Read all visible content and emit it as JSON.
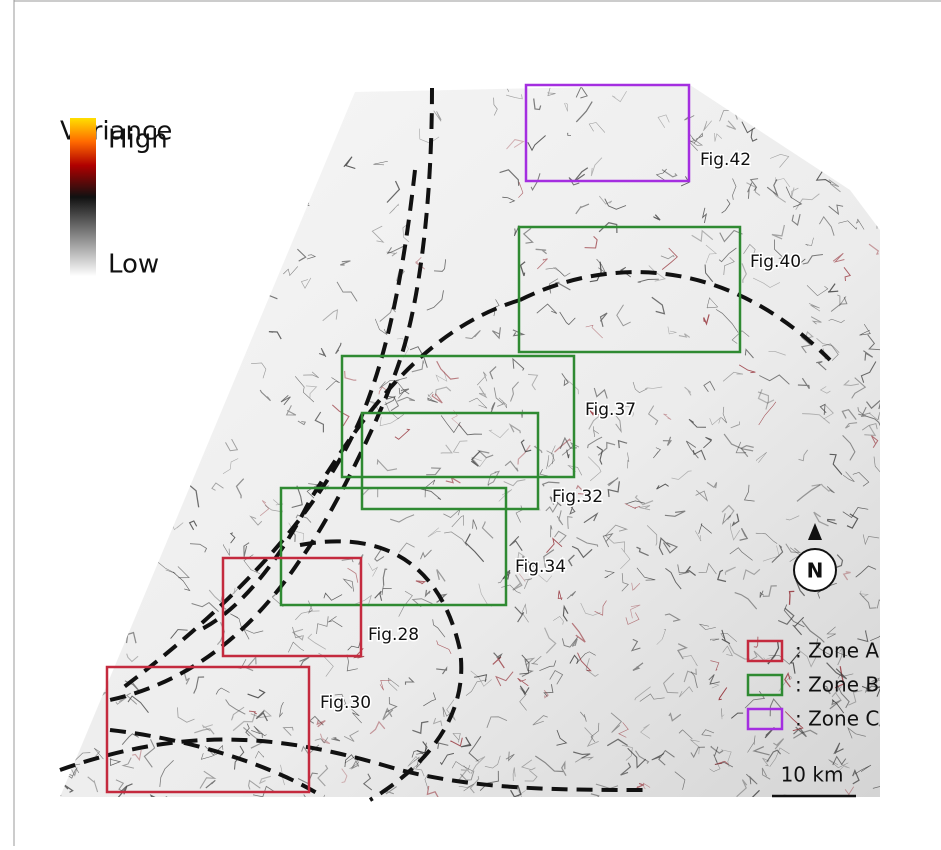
{
  "legend": {
    "title": "Variance",
    "high": "High",
    "low": "Low"
  },
  "figures": [
    {
      "label": "Fig.42"
    },
    {
      "label": "Fig.40"
    },
    {
      "label": "Fig.37"
    },
    {
      "label": "Fig.32"
    },
    {
      "label": "Fig.34"
    },
    {
      "label": "Fig.28"
    },
    {
      "label": "Fig.30"
    }
  ],
  "zones": [
    {
      "label": ":  Zone A",
      "color": "#c42a3e"
    },
    {
      "label": ":  Zone B",
      "color": "#2f8a32"
    },
    {
      "label": ":  Zone C",
      "color": "#a42ee0"
    }
  ],
  "north": "N",
  "scale": "10 km"
}
